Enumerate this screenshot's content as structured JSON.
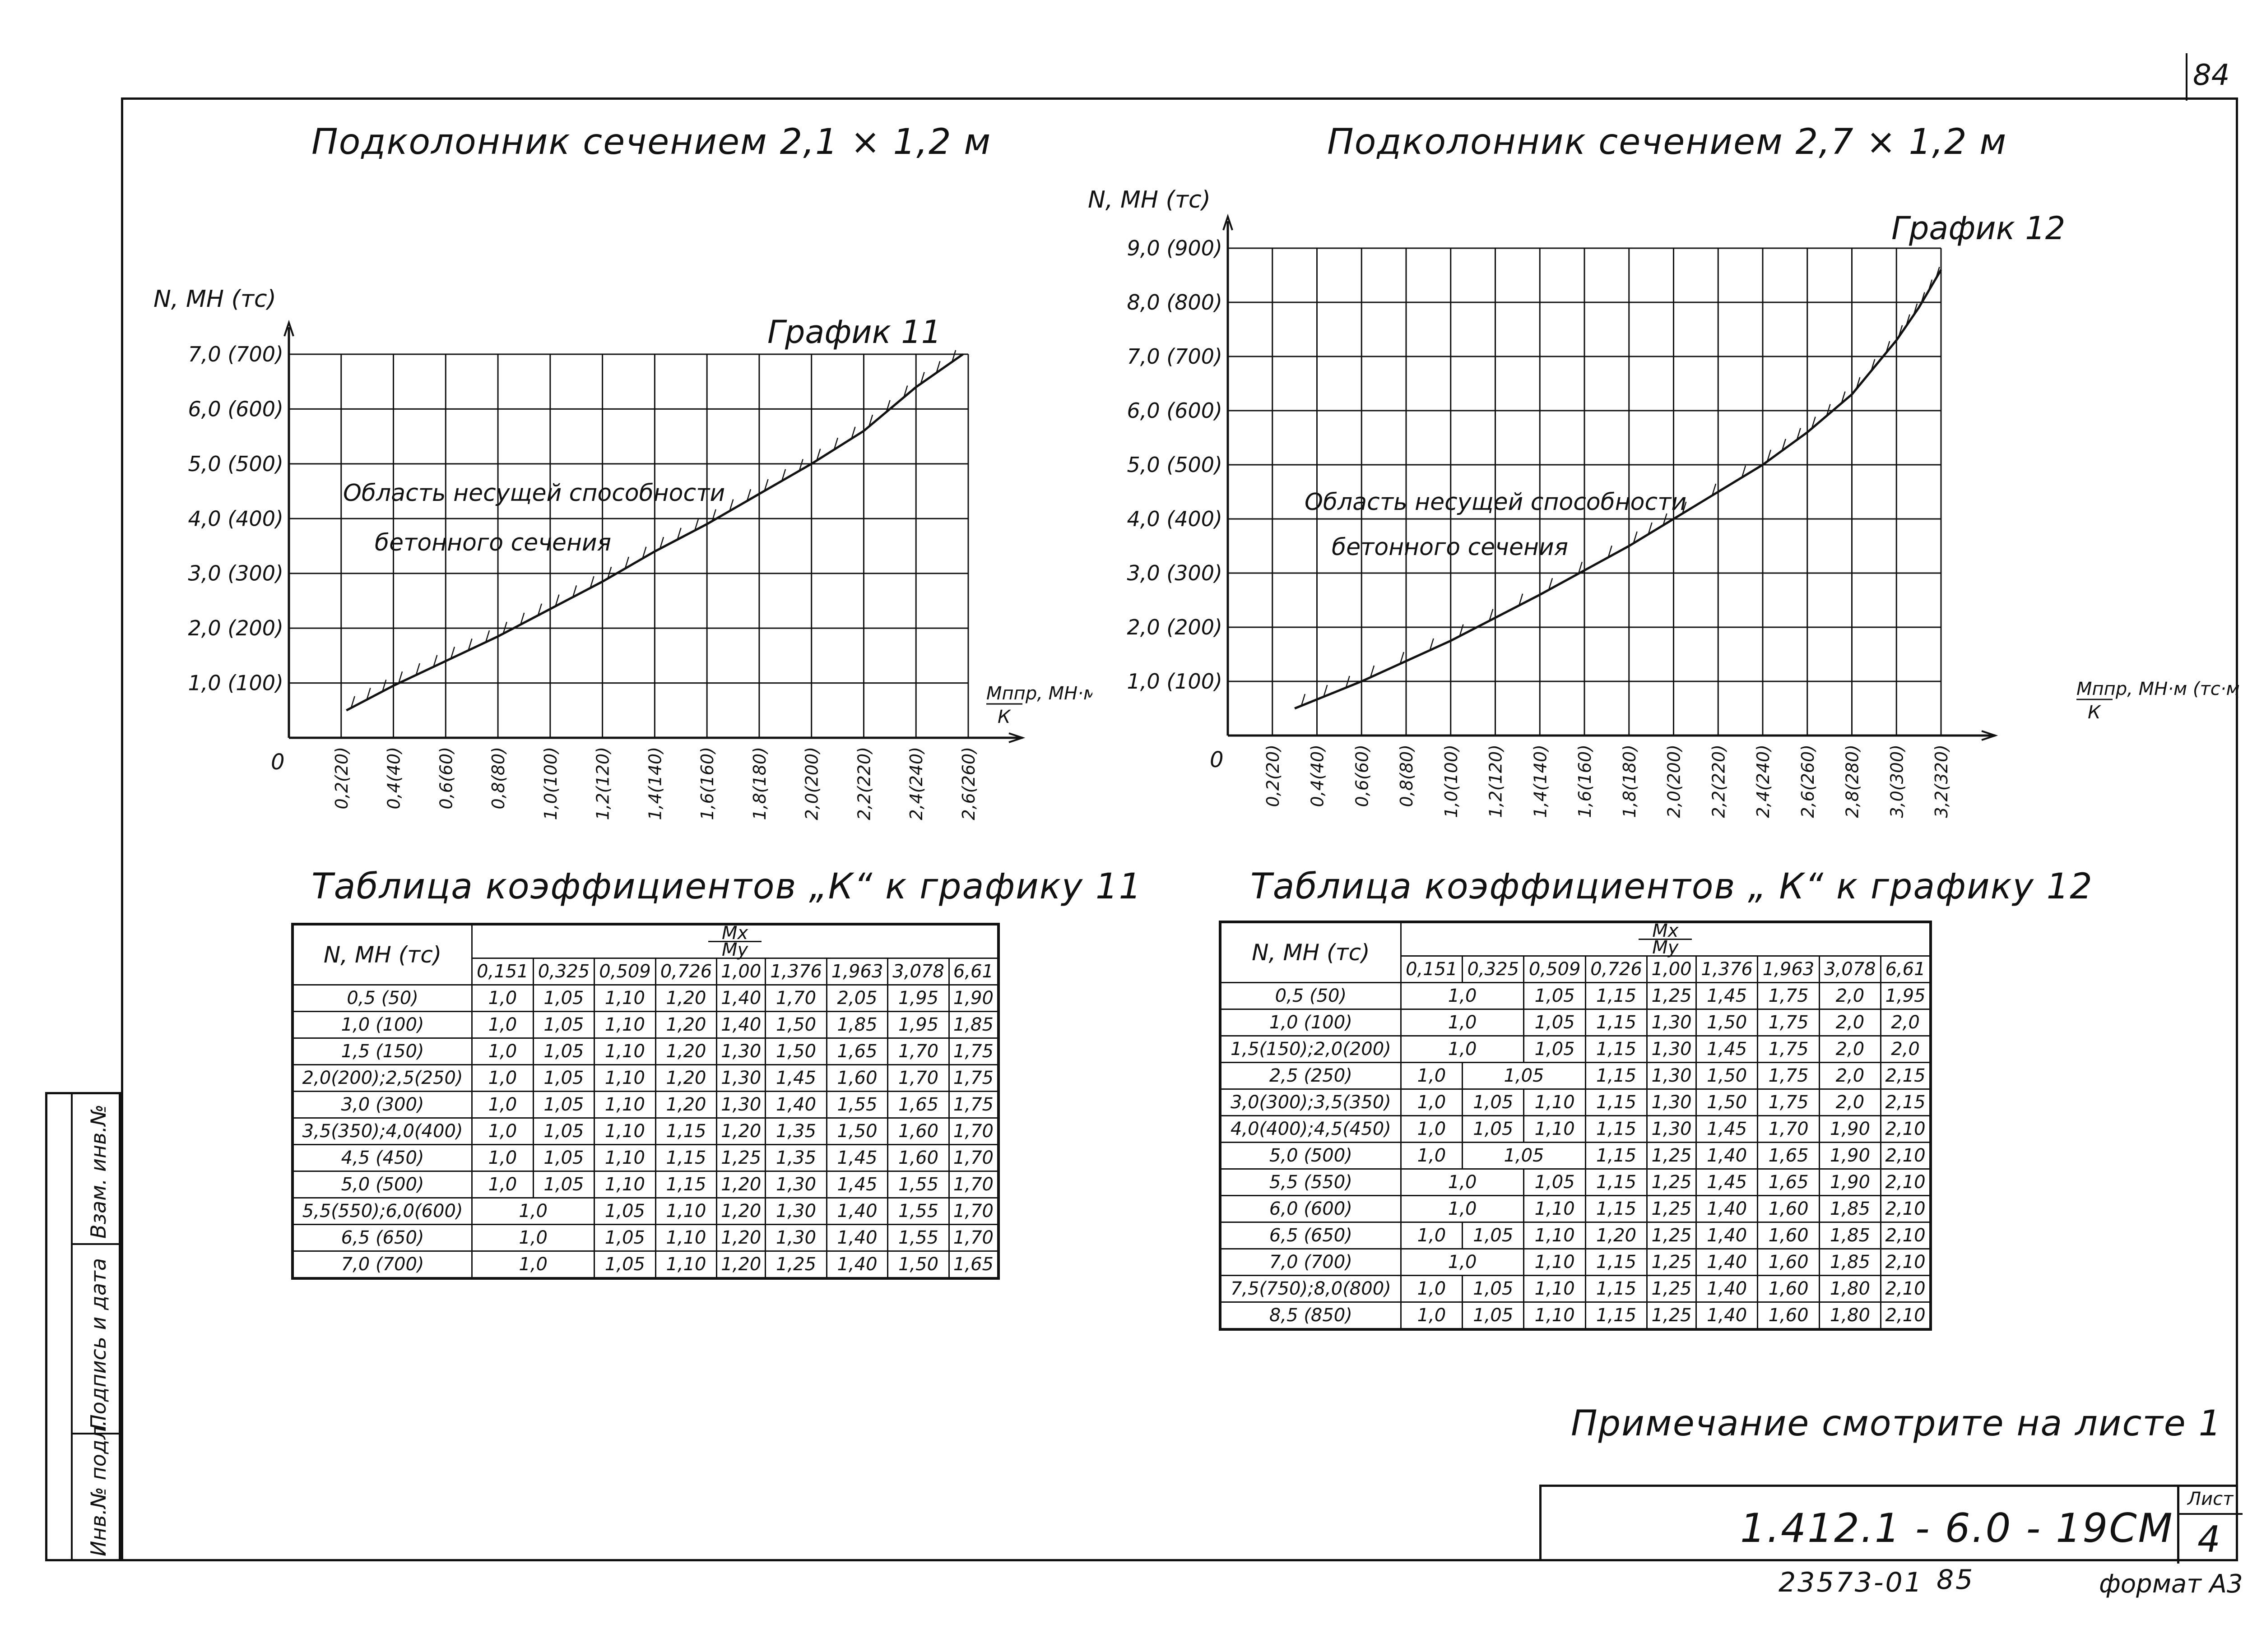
{
  "page_number": "84",
  "titles": {
    "left": "Подколонник   сечением  2,1 × 1,2 м",
    "right": "Подколонник   сечением  2,7 × 1,2 м"
  },
  "chart_data": [
    {
      "type": "line",
      "title": "График 11",
      "ylabel": "N, МН (тс)",
      "xlabel_top": "Мппр, МН·м (тс·м)",
      "xlabel_bottom": "К",
      "origin_label": "0",
      "region_label_1": "Область несущей способности",
      "region_label_2": "бетонного сечения",
      "x_ticks": [
        "0,2(20)",
        "0,4(40)",
        "0,6(60)",
        "0,8(80)",
        "1,0(100)",
        "1,2(120)",
        "1,4(140)",
        "1,6(160)",
        "1,8(180)",
        "2,0(200)",
        "2,2(220)",
        "2,4(240)",
        "2,6(260)"
      ],
      "y_ticks": [
        "1,0 (100)",
        "2,0 (200)",
        "3,0 (300)",
        "4,0 (400)",
        "5,0 (500)",
        "6,0 (600)",
        "7,0 (700)"
      ],
      "xlim": [
        0,
        2.6
      ],
      "ylim": [
        0,
        7.0
      ],
      "grid": true,
      "series": [
        {
          "x": [
            0.22,
            0.4,
            0.6,
            0.8,
            1.0,
            1.2,
            1.4,
            1.6,
            1.8,
            2.0,
            2.2,
            2.4,
            2.58
          ],
          "y": [
            0.5,
            0.95,
            1.4,
            1.85,
            2.35,
            2.85,
            3.4,
            3.9,
            4.45,
            5.0,
            5.6,
            6.4,
            7.0
          ]
        }
      ]
    },
    {
      "type": "line",
      "title": "График 12",
      "ylabel": "N, МН (тс)",
      "xlabel_top": "Мппр, МН·м (тс·м)",
      "xlabel_bottom": "К",
      "origin_label": "0",
      "region_label_1": "Область несущей способности",
      "region_label_2": "бетонного сечения",
      "x_ticks": [
        "0,2(20)",
        "0,4(40)",
        "0,6(60)",
        "0,8(80)",
        "1,0(100)",
        "1,2(120)",
        "1,4(140)",
        "1,6(160)",
        "1,8(180)",
        "2,0(200)",
        "2,2(220)",
        "2,4(240)",
        "2,6(260)",
        "2,8(280)",
        "3,0(300)",
        "3,2(320)"
      ],
      "y_ticks": [
        "1,0 (100)",
        "2,0 (200)",
        "3,0 (300)",
        "4,0 (400)",
        "5,0 (500)",
        "6,0 (600)",
        "7,0 (700)",
        "8,0 (800)",
        "9,0 (900)"
      ],
      "xlim": [
        0,
        3.2
      ],
      "ylim": [
        0,
        9.0
      ],
      "grid": true,
      "series": [
        {
          "x": [
            0.3,
            0.6,
            1.0,
            1.4,
            1.8,
            2.0,
            2.4,
            2.6,
            2.8,
            3.0,
            3.1,
            3.2
          ],
          "y": [
            0.5,
            1.0,
            1.75,
            2.6,
            3.5,
            4.0,
            5.0,
            5.6,
            6.3,
            7.3,
            7.9,
            8.6
          ]
        }
      ]
    }
  ],
  "table11": {
    "title": "Таблица   коэффициентов „К“ к графику 11",
    "row_header": "N, МН (тс)",
    "ratio_top": "Мх",
    "ratio_bottom": "Му",
    "columns": [
      "0,151",
      "0,325",
      "0,509",
      "0,726",
      "1,00",
      "1,376",
      "1,963",
      "3,078",
      "6,61"
    ],
    "rows": [
      {
        "n": "0,5  (50)",
        "v": [
          "1,0",
          "1,05",
          "1,10",
          "1,20",
          "1,40",
          "1,70",
          "2,05",
          "1,95",
          "1,90"
        ]
      },
      {
        "n": "1,0  (100)",
        "v": [
          "1,0",
          "1,05",
          "1,10",
          "1,20",
          "1,40",
          "1,50",
          "1,85",
          "1,95",
          "1,85"
        ]
      },
      {
        "n": "1,5  (150)",
        "v": [
          "1,0",
          "1,05",
          "1,10",
          "1,20",
          "1,30",
          "1,50",
          "1,65",
          "1,70",
          "1,75"
        ]
      },
      {
        "n": "2,0(200);2,5(250)",
        "v": [
          "1,0",
          "1,05",
          "1,10",
          "1,20",
          "1,30",
          "1,45",
          "1,60",
          "1,70",
          "1,75"
        ]
      },
      {
        "n": "3,0  (300)",
        "v": [
          "1,0",
          "1,05",
          "1,10",
          "1,20",
          "1,30",
          "1,40",
          "1,55",
          "1,65",
          "1,75"
        ]
      },
      {
        "n": "3,5(350);4,0(400)",
        "v": [
          "1,0",
          "1,05",
          "1,10",
          "1,15",
          "1,20",
          "1,35",
          "1,50",
          "1,60",
          "1,70"
        ]
      },
      {
        "n": "4,5  (450)",
        "v": [
          "1,0",
          "1,05",
          "1,10",
          "1,15",
          "1,25",
          "1,35",
          "1,45",
          "1,60",
          "1,70"
        ]
      },
      {
        "n": "5,0  (500)",
        "v": [
          "1,0",
          "1,05",
          "1,10",
          "1,15",
          "1,20",
          "1,30",
          "1,45",
          "1,55",
          "1,70"
        ]
      },
      {
        "n": "5,5(550);6,0(600)",
        "span": "1,0",
        "v": [
          "1,05",
          "1,10",
          "1,20",
          "1,30",
          "1,40",
          "1,55",
          "1,70"
        ]
      },
      {
        "n": "6,5  (650)",
        "span": "1,0",
        "v": [
          "1,05",
          "1,10",
          "1,20",
          "1,30",
          "1,40",
          "1,55",
          "1,70"
        ]
      },
      {
        "n": "7,0  (700)",
        "span": "1,0",
        "v": [
          "1,05",
          "1,10",
          "1,20",
          "1,25",
          "1,40",
          "1,50",
          "1,65"
        ]
      }
    ]
  },
  "table12": {
    "title": "Таблица   коэффициентов „ К“ к графику 12",
    "row_header": "N, МН (тс)",
    "ratio_top": "Мх",
    "ratio_bottom": "Му",
    "columns": [
      "0,151",
      "0,325",
      "0,509",
      "0,726",
      "1,00",
      "1,376",
      "1,963",
      "3,078",
      "6,61"
    ],
    "rows": [
      {
        "n": "0,5  (50)",
        "s2": "1,0",
        "v": [
          "1,05",
          "1,15",
          "1,25",
          "1,45",
          "1,75",
          "2,0",
          "1,95"
        ]
      },
      {
        "n": "1,0  (100)",
        "s2": "1,0",
        "v": [
          "1,05",
          "1,15",
          "1,30",
          "1,50",
          "1,75",
          "2,0",
          "2,0"
        ]
      },
      {
        "n": "1,5(150);2,0(200)",
        "s2": "1,0",
        "v": [
          "1,05",
          "1,15",
          "1,30",
          "1,45",
          "1,75",
          "2,0",
          "2,0"
        ]
      },
      {
        "n": "2,5  (250)",
        "a": "1,0",
        "s2b": "1,05",
        "v": [
          "1,15",
          "1,30",
          "1,50",
          "1,75",
          "2,0",
          "2,15"
        ]
      },
      {
        "n": "3,0(300);3,5(350)",
        "full": [
          "1,0",
          "1,05",
          "1,10",
          "1,15",
          "1,30",
          "1,50",
          "1,75",
          "2,0",
          "2,15"
        ]
      },
      {
        "n": "4,0(400);4,5(450)",
        "full": [
          "1,0",
          "1,05",
          "1,10",
          "1,15",
          "1,30",
          "1,45",
          "1,70",
          "1,90",
          "2,10"
        ]
      },
      {
        "n": "5,0  (500)",
        "a": "1,0",
        "s2b": "1,05",
        "v": [
          "1,15",
          "1,25",
          "1,40",
          "1,65",
          "1,90",
          "2,10"
        ]
      },
      {
        "n": "5,5  (550)",
        "s2": "1,0",
        "v": [
          "1,05",
          "1,15",
          "1,25",
          "1,45",
          "1,65",
          "1,90",
          "2,10"
        ]
      },
      {
        "n": "6,0  (600)",
        "s2": "1,0",
        "v": [
          "1,10",
          "1,15",
          "1,25",
          "1,40",
          "1,60",
          "1,85",
          "2,10"
        ]
      },
      {
        "n": "6,5  (650)",
        "full": [
          "1,0",
          "1,05",
          "1,10",
          "1,20",
          "1,25",
          "1,40",
          "1,60",
          "1,85",
          "2,10"
        ]
      },
      {
        "n": "7,0  (700)",
        "s2": "1,0",
        "v": [
          "1,10",
          "1,15",
          "1,25",
          "1,40",
          "1,60",
          "1,85",
          "2,10"
        ]
      },
      {
        "n": "7,5(750);8,0(800)",
        "full": [
          "1,0",
          "1,05",
          "1,10",
          "1,15",
          "1,25",
          "1,40",
          "1,60",
          "1,80",
          "2,10"
        ]
      },
      {
        "n": "8,5  (850)",
        "full": [
          "1,0",
          "1,05",
          "1,10",
          "1,15",
          "1,25",
          "1,40",
          "1,60",
          "1,80",
          "2,10"
        ]
      }
    ]
  },
  "note": "Примечание  смотрите   на  листе  1",
  "stamp": {
    "code": "1.412.1 - 6.0 - 19СМ",
    "sheet_label": "Лист",
    "sheet_number": "4"
  },
  "bottom": {
    "code1": "23573-01",
    "code2": "85",
    "format": "формат А3"
  },
  "sidebar": {
    "inv": "Инв.№ подл.",
    "sign": "Подпись и дата",
    "replace": "Взам. инв.№"
  }
}
